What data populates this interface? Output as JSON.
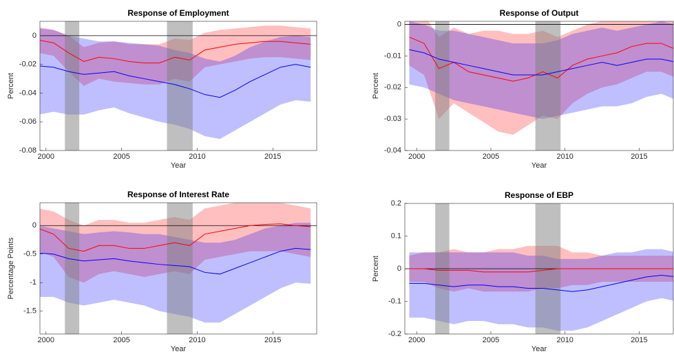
{
  "chart_data": [
    {
      "type": "line",
      "title": "Response of Employment",
      "xlabel": "Year",
      "ylabel": "Percent",
      "xlim": [
        1999.6,
        2017.9
      ],
      "ylim": [
        -0.08,
        0.01
      ],
      "xticks": [
        2000,
        2005,
        2010,
        2015
      ],
      "yticks": [
        -0.08,
        -0.06,
        -0.04,
        -0.02,
        0
      ],
      "hline": 0,
      "shaded_regions": [
        [
          2001.25,
          2002.2
        ],
        [
          2008,
          2009.7
        ]
      ],
      "x": [
        1999.5,
        2000.5,
        2001.5,
        2002.5,
        2003.5,
        2004.5,
        2005.5,
        2006.5,
        2007.5,
        2008.5,
        2009.5,
        2010.5,
        2011.5,
        2012.5,
        2013.5,
        2014.5,
        2015.5,
        2016.5,
        2017.5
      ],
      "series": [
        {
          "color": "#ff0000",
          "values": [
            -0.003,
            -0.005,
            -0.012,
            -0.018,
            -0.015,
            -0.016,
            -0.018,
            -0.019,
            -0.019,
            -0.015,
            -0.017,
            -0.01,
            -0.008,
            -0.006,
            -0.005,
            -0.004,
            -0.004,
            -0.005,
            -0.006
          ],
          "lower": [
            -0.012,
            -0.014,
            -0.025,
            -0.035,
            -0.03,
            -0.032,
            -0.033,
            -0.034,
            -0.034,
            -0.03,
            -0.032,
            -0.022,
            -0.02,
            -0.018,
            -0.016,
            -0.015,
            -0.015,
            -0.016,
            -0.017
          ],
          "upper": [
            0.006,
            0.004,
            0.0,
            -0.008,
            -0.005,
            -0.004,
            -0.006,
            -0.006,
            -0.006,
            -0.002,
            -0.003,
            0.002,
            0.004,
            0.005,
            0.006,
            0.007,
            0.007,
            0.006,
            0.005
          ]
        },
        {
          "color": "#0000ff",
          "values": [
            -0.021,
            -0.022,
            -0.025,
            -0.027,
            -0.026,
            -0.025,
            -0.028,
            -0.03,
            -0.032,
            -0.034,
            -0.037,
            -0.041,
            -0.043,
            -0.038,
            -0.032,
            -0.027,
            -0.022,
            -0.02,
            -0.022
          ],
          "lower": [
            -0.055,
            -0.053,
            -0.055,
            -0.055,
            -0.052,
            -0.05,
            -0.054,
            -0.057,
            -0.06,
            -0.062,
            -0.065,
            -0.07,
            -0.072,
            -0.066,
            -0.06,
            -0.054,
            -0.048,
            -0.045,
            -0.046
          ],
          "upper": [
            0.005,
            0.004,
            0.0,
            -0.002,
            -0.004,
            -0.004,
            -0.005,
            -0.006,
            -0.007,
            -0.01,
            -0.012,
            -0.016,
            -0.018,
            -0.014,
            -0.008,
            -0.004,
            -0.001,
            0.0,
            -0.001
          ]
        }
      ]
    },
    {
      "type": "line",
      "title": "Response of Output",
      "xlabel": "Year",
      "ylabel": "Percent",
      "xlim": [
        1999.2,
        2017.3
      ],
      "ylim": [
        -0.04,
        0.001
      ],
      "xticks": [
        2000,
        2005,
        2010,
        2015
      ],
      "yticks": [
        -0.04,
        -0.03,
        -0.02,
        -0.01,
        0
      ],
      "hline": 0,
      "shaded_regions": [
        [
          2001.25,
          2002.2
        ],
        [
          2008,
          2009.7
        ]
      ],
      "x": [
        1999.5,
        2000.5,
        2001.5,
        2002.5,
        2003.5,
        2004.5,
        2005.5,
        2006.5,
        2007.5,
        2008.5,
        2009.5,
        2010.5,
        2011.5,
        2012.5,
        2013.5,
        2014.5,
        2015.5,
        2016.5,
        2017.5
      ],
      "series": [
        {
          "color": "#ff0000",
          "values": [
            -0.004,
            -0.006,
            -0.014,
            -0.012,
            -0.015,
            -0.016,
            -0.017,
            -0.018,
            -0.017,
            -0.015,
            -0.017,
            -0.013,
            -0.011,
            -0.01,
            -0.009,
            -0.007,
            -0.006,
            -0.006,
            -0.008
          ],
          "lower": [
            -0.013,
            -0.016,
            -0.03,
            -0.025,
            -0.028,
            -0.031,
            -0.034,
            -0.035,
            -0.032,
            -0.029,
            -0.03,
            -0.025,
            -0.022,
            -0.02,
            -0.019,
            -0.017,
            -0.015,
            -0.015,
            -0.017
          ],
          "upper": [
            0.004,
            0.003,
            -0.004,
            -0.001,
            -0.003,
            -0.002,
            -0.002,
            -0.003,
            -0.003,
            -0.002,
            -0.004,
            -0.002,
            0.0,
            0.001,
            0.001,
            0.002,
            0.002,
            0.002,
            0.001
          ]
        },
        {
          "color": "#0000ff",
          "values": [
            -0.008,
            -0.009,
            -0.011,
            -0.012,
            -0.013,
            -0.014,
            -0.015,
            -0.016,
            -0.016,
            -0.016,
            -0.015,
            -0.014,
            -0.013,
            -0.012,
            -0.013,
            -0.012,
            -0.011,
            -0.011,
            -0.012
          ],
          "lower": [
            -0.019,
            -0.02,
            -0.022,
            -0.024,
            -0.025,
            -0.026,
            -0.027,
            -0.028,
            -0.029,
            -0.03,
            -0.029,
            -0.028,
            -0.027,
            -0.026,
            -0.026,
            -0.025,
            -0.023,
            -0.022,
            -0.024
          ],
          "upper": [
            0.001,
            0.0,
            -0.002,
            -0.002,
            -0.003,
            -0.004,
            -0.005,
            -0.006,
            -0.006,
            -0.006,
            -0.005,
            -0.003,
            -0.002,
            -0.001,
            -0.002,
            -0.001,
            0.0,
            0.001,
            0.0
          ]
        }
      ]
    },
    {
      "type": "line",
      "title": "Response of Interest Rate",
      "xlabel": "Year",
      "ylabel": "Percentage Points",
      "xlim": [
        1999.6,
        2017.9
      ],
      "ylim": [
        -1.9,
        0.4
      ],
      "xticks": [
        2000,
        2005,
        2010,
        2015
      ],
      "yticks": [
        -1.5,
        -1,
        -0.5,
        0
      ],
      "hline": 0,
      "shaded_regions": [
        [
          2001.25,
          2002.2
        ],
        [
          2008,
          2009.7
        ]
      ],
      "x": [
        1999.5,
        2000.5,
        2001.5,
        2002.5,
        2003.5,
        2004.5,
        2005.5,
        2006.5,
        2007.5,
        2008.5,
        2009.5,
        2010.5,
        2011.5,
        2012.5,
        2013.5,
        2014.5,
        2015.5,
        2016.5,
        2017.5
      ],
      "series": [
        {
          "color": "#ff0000",
          "values": [
            -0.05,
            -0.15,
            -0.4,
            -0.45,
            -0.35,
            -0.35,
            -0.4,
            -0.4,
            -0.35,
            -0.3,
            -0.35,
            -0.15,
            -0.1,
            -0.05,
            0.0,
            0.02,
            0.03,
            0.0,
            -0.02
          ],
          "lower": [
            -0.45,
            -0.55,
            -0.9,
            -1.0,
            -0.85,
            -0.8,
            -0.85,
            -0.9,
            -0.85,
            -0.8,
            -0.85,
            -0.6,
            -0.55,
            -0.5,
            -0.45,
            -0.45,
            -0.45,
            -0.5,
            -0.55
          ],
          "upper": [
            0.3,
            0.25,
            0.1,
            0.0,
            0.1,
            0.1,
            0.05,
            0.05,
            0.1,
            0.15,
            0.1,
            0.3,
            0.35,
            0.4,
            0.4,
            0.4,
            0.4,
            0.35,
            0.3
          ]
        },
        {
          "color": "#0000ff",
          "values": [
            -0.48,
            -0.5,
            -0.58,
            -0.62,
            -0.6,
            -0.58,
            -0.62,
            -0.65,
            -0.68,
            -0.7,
            -0.72,
            -0.82,
            -0.85,
            -0.75,
            -0.65,
            -0.55,
            -0.45,
            -0.4,
            -0.42
          ],
          "lower": [
            -1.25,
            -1.25,
            -1.35,
            -1.4,
            -1.35,
            -1.3,
            -1.35,
            -1.4,
            -1.5,
            -1.55,
            -1.6,
            -1.7,
            -1.7,
            -1.55,
            -1.4,
            -1.25,
            -1.1,
            -1.0,
            -1.02
          ],
          "upper": [
            0.0,
            -0.05,
            -0.1,
            -0.15,
            -0.12,
            -0.1,
            -0.12,
            -0.15,
            -0.15,
            -0.2,
            -0.25,
            -0.3,
            -0.3,
            -0.25,
            -0.15,
            -0.05,
            0.0,
            0.05,
            0.05
          ]
        }
      ]
    },
    {
      "type": "line",
      "title": "Response of EBP",
      "xlabel": "Year",
      "ylabel": "Percent",
      "xlim": [
        1999.2,
        2017.3
      ],
      "ylim": [
        -0.2,
        0.2
      ],
      "xticks": [
        2000,
        2005,
        2010,
        2015
      ],
      "yticks": [
        -0.2,
        -0.1,
        0,
        0.1,
        0.2
      ],
      "hline": 0,
      "shaded_regions": [
        [
          2001.25,
          2002.2
        ],
        [
          2008,
          2009.7
        ]
      ],
      "x": [
        1999.5,
        2000.5,
        2001.5,
        2002.5,
        2003.5,
        2004.5,
        2005.5,
        2006.5,
        2007.5,
        2008.5,
        2009.5,
        2010.5,
        2011.5,
        2012.5,
        2013.5,
        2014.5,
        2015.5,
        2016.5,
        2017.5
      ],
      "series": [
        {
          "color": "#ff0000",
          "values": [
            0.0,
            0.0,
            -0.005,
            -0.005,
            -0.005,
            -0.01,
            -0.01,
            -0.01,
            -0.01,
            -0.005,
            0.0,
            0.0,
            0.0,
            0.0,
            0.0,
            0.0,
            0.0,
            0.0,
            0.0
          ],
          "lower": [
            -0.04,
            -0.04,
            -0.06,
            -0.07,
            -0.06,
            -0.07,
            -0.07,
            -0.07,
            -0.07,
            -0.06,
            -0.06,
            -0.05,
            -0.05,
            -0.04,
            -0.04,
            -0.04,
            -0.04,
            -0.04,
            -0.04
          ],
          "upper": [
            0.04,
            0.05,
            0.05,
            0.06,
            0.05,
            0.05,
            0.06,
            0.06,
            0.07,
            0.07,
            0.07,
            0.05,
            0.05,
            0.04,
            0.04,
            0.04,
            0.04,
            0.04,
            0.04
          ]
        },
        {
          "color": "#0000ff",
          "values": [
            -0.045,
            -0.045,
            -0.05,
            -0.055,
            -0.05,
            -0.05,
            -0.055,
            -0.055,
            -0.06,
            -0.06,
            -0.065,
            -0.07,
            -0.065,
            -0.055,
            -0.045,
            -0.035,
            -0.025,
            -0.02,
            -0.025
          ],
          "lower": [
            -0.15,
            -0.15,
            -0.16,
            -0.17,
            -0.16,
            -0.16,
            -0.17,
            -0.17,
            -0.18,
            -0.18,
            -0.19,
            -0.19,
            -0.18,
            -0.16,
            -0.14,
            -0.12,
            -0.1,
            -0.09,
            -0.1
          ],
          "upper": [
            0.05,
            0.05,
            0.05,
            0.05,
            0.05,
            0.05,
            0.05,
            0.05,
            0.04,
            0.04,
            0.03,
            0.03,
            0.03,
            0.04,
            0.05,
            0.05,
            0.06,
            0.06,
            0.05
          ]
        }
      ]
    }
  ]
}
